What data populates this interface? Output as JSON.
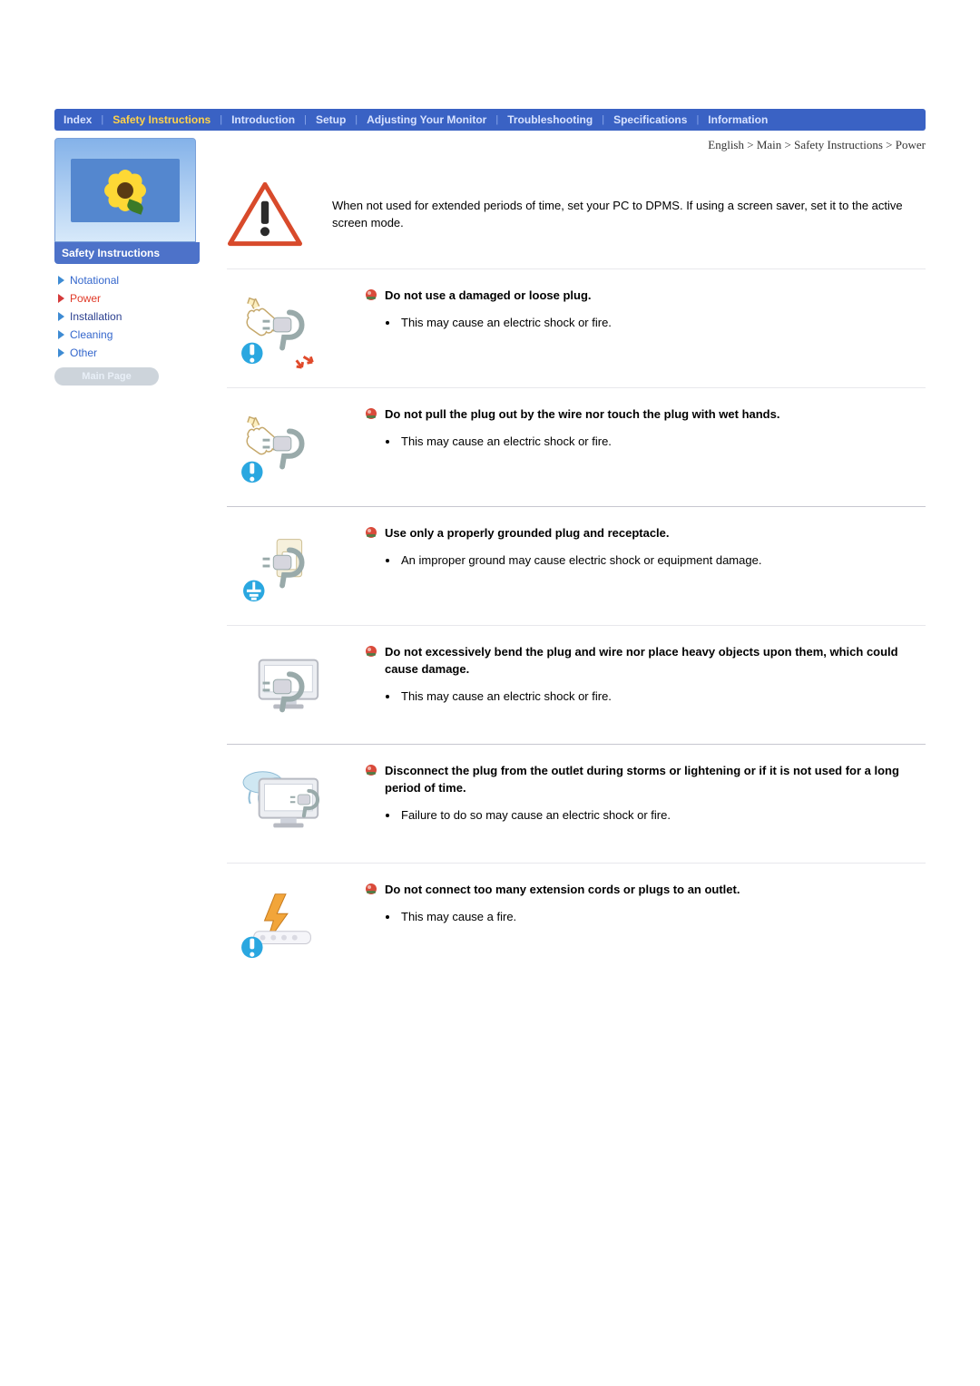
{
  "nav": [
    {
      "label": "Index",
      "active": false
    },
    {
      "label": "Safety Instructions",
      "active": true
    },
    {
      "label": "Introduction",
      "active": false
    },
    {
      "label": "Setup",
      "active": false
    },
    {
      "label": "Adjusting Your Monitor",
      "active": false
    },
    {
      "label": "Troubleshooting",
      "active": false
    },
    {
      "label": "Specifications",
      "active": false
    },
    {
      "label": "Information",
      "active": false
    }
  ],
  "nav_colors": {
    "bg": "#3a62c4",
    "text": "#d7e2ff",
    "active": "#ffd24a",
    "sep": "#8aa7ea"
  },
  "sidebar": {
    "header": "Safety Instructions",
    "links": [
      {
        "label": "Notational",
        "kind": "blue"
      },
      {
        "label": "Power",
        "kind": "red"
      },
      {
        "label": "Installation",
        "kind": "dkblue"
      },
      {
        "label": "Cleaning",
        "kind": "blue"
      },
      {
        "label": "Other",
        "kind": "blue"
      }
    ],
    "main_page_label": "Main Page"
  },
  "breadcrumb": "English > Main > Safety Instructions > Power",
  "intro": "When not used for extended periods of time, set your PC to DPMS. If using a screen saver, set it to the active screen mode.",
  "bullet_color": "#c83737",
  "rule_color_light": "#e8e8ec",
  "rule_color_dark": "#c7c7d0",
  "items": [
    {
      "title": "Do not use a damaged or loose plug.",
      "text": "This may cause an electric shock or fire."
    },
    {
      "title": "Do not pull the plug out by the wire nor touch the plug with wet hands.",
      "text": "This may cause an electric shock or fire."
    },
    {
      "title": "Use only a properly grounded plug and receptacle.",
      "text": "An improper ground may cause electric shock or equipment damage."
    },
    {
      "title": "Do not excessively bend the plug and wire nor place heavy objects upon them, which could cause damage.",
      "text": "This may cause an electric shock or fire."
    },
    {
      "title": "Disconnect the plug from the outlet during storms or lightening or if it is not used for a long period of time.",
      "text": "Failure to do so may cause an electric shock or fire."
    },
    {
      "title": "Do not connect too many extension cords or plugs to an outlet.",
      "text": "This may cause a fire."
    }
  ]
}
